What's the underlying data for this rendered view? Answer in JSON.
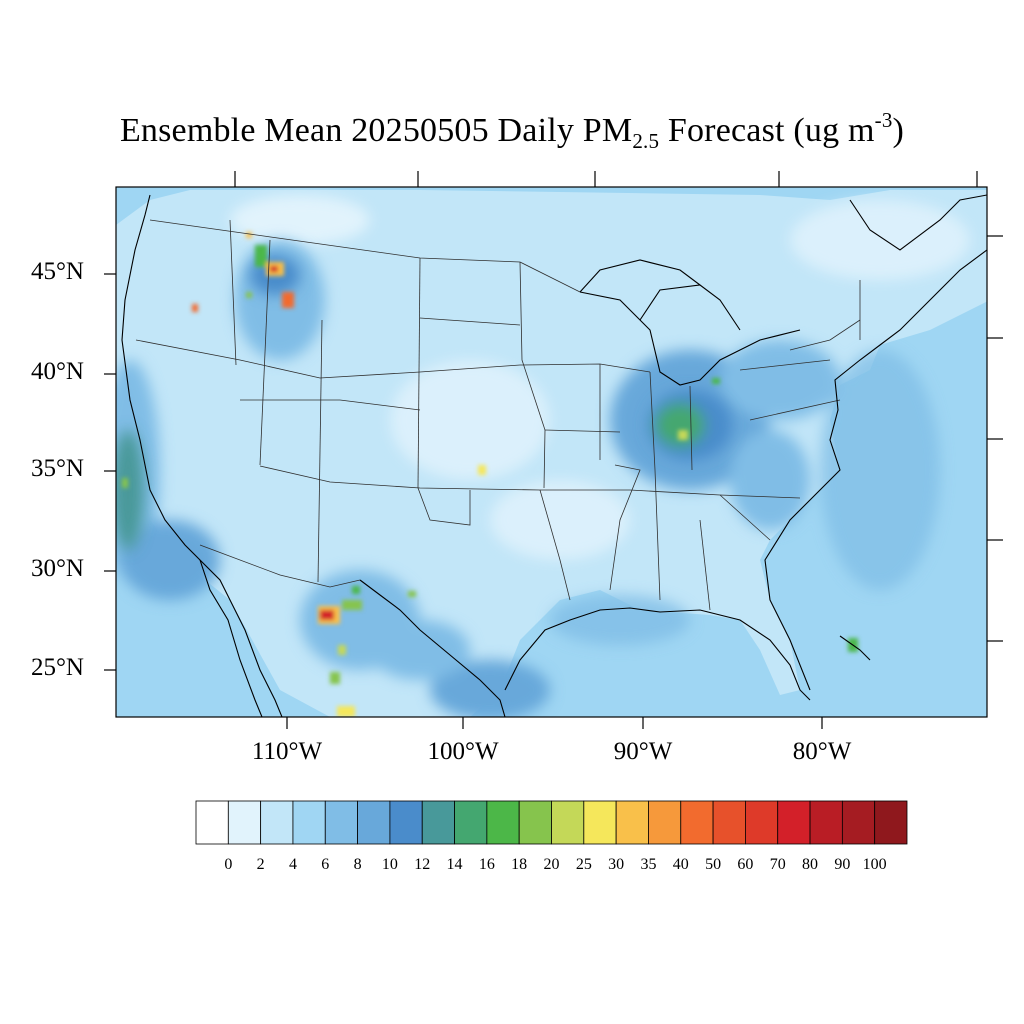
{
  "title": {
    "prefix": "Ensemble Mean 20250505 Daily PM",
    "subscript": "2.5",
    "middle": " Forecast (ug m",
    "superscript": "-3",
    "suffix": ")"
  },
  "map": {
    "projection": "Lambert Conformal",
    "region": "Contiguous United States",
    "lat_labels": [
      "45°N",
      "40°N",
      "35°N",
      "30°N",
      "25°N"
    ],
    "lon_labels": [
      "110°W",
      "100°W",
      "90°W",
      "80°W"
    ],
    "colors": {
      "ocean_background": "#9fd6f3",
      "land_base": "#c2e6f8",
      "coastline": "#000000",
      "state_lines": "#333333"
    }
  },
  "colorbar": {
    "labels": [
      "0",
      "2",
      "4",
      "6",
      "8",
      "10",
      "12",
      "14",
      "16",
      "18",
      "20",
      "25",
      "30",
      "35",
      "40",
      "50",
      "60",
      "70",
      "80",
      "90",
      "100"
    ],
    "colors": [
      "#ffffff",
      "#e1f3fc",
      "#c2e6f8",
      "#a0d6f3",
      "#80bde6",
      "#68a8da",
      "#4a8ccb",
      "#48999a",
      "#44a770",
      "#4cb748",
      "#86c44d",
      "#c4d858",
      "#f5e75b",
      "#f9c04a",
      "#f6993b",
      "#f26b2e",
      "#e7512b",
      "#de3a29",
      "#d32029",
      "#b91d25",
      "#a51c22",
      "#8f181d"
    ]
  }
}
